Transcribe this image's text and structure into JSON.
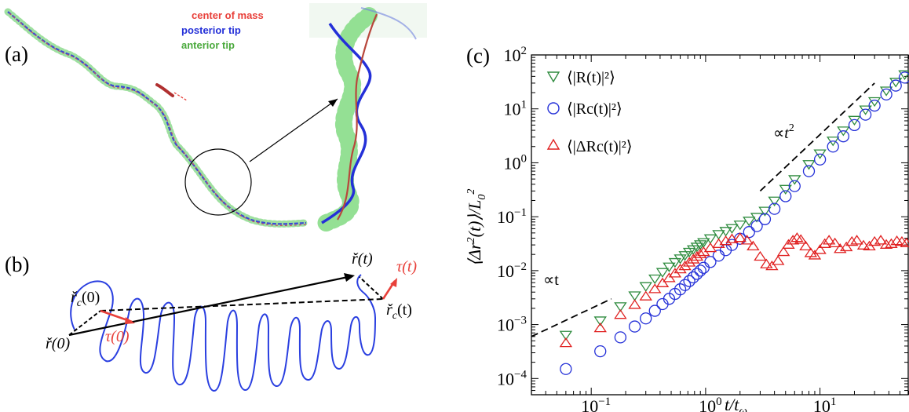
{
  "panels": {
    "a": {
      "label": "(a)",
      "legend": [
        {
          "text": "center of mass",
          "color": "#e8403a"
        },
        {
          "text": "posterior tip",
          "color": "#2430d8"
        },
        {
          "text": "anterior tip",
          "color": "#4aa93c"
        }
      ]
    },
    "b": {
      "label": "(b)",
      "labels": {
        "r_t": "ř(t)",
        "tau_t": "τ(t)",
        "rc_0": "ř",
        "rc_0_sub": "c",
        "rc_0_arg": "(0)",
        "rc_t": "ř",
        "rc_t_sub": "c",
        "rc_t_arg": "(t)",
        "r_0": "ř(0)",
        "tau_0": "τ(0)"
      },
      "colors": {
        "helix": "#2a3fe0",
        "tau": "#e8403a",
        "vector": "#000000"
      }
    },
    "c": {
      "label": "(c)"
    }
  },
  "chart_data": {
    "type": "scatter",
    "xscale": "log",
    "yscale": "log",
    "xlim": [
      0.03,
      60
    ],
    "ylim": [
      5e-05,
      100
    ],
    "xlabel": "t/tω",
    "ylabel": "⟨Δr²(t)⟩/L0²",
    "x_ticks": [
      {
        "base": "10",
        "exp": "−1",
        "value": 0.1
      },
      {
        "base": "10",
        "exp": "0",
        "value": 1
      },
      {
        "base": "10",
        "exp": "1",
        "value": 10
      }
    ],
    "y_ticks": [
      {
        "base": "10",
        "exp": "−4",
        "value": 0.0001
      },
      {
        "base": "10",
        "exp": "−3",
        "value": 0.001
      },
      {
        "base": "10",
        "exp": "−2",
        "value": 0.01
      },
      {
        "base": "10",
        "exp": "−1",
        "value": 0.1
      },
      {
        "base": "10",
        "exp": "0",
        "value": 1
      },
      {
        "base": "10",
        "exp": "1",
        "value": 10
      },
      {
        "base": "10",
        "exp": "2",
        "value": 100
      }
    ],
    "legend_position": "top-left",
    "series": [
      {
        "name": "⟨|R(t)|²⟩",
        "marker": "triangle-down",
        "color": "#2e8b3e",
        "points": [
          [
            0.06,
            0.00065
          ],
          [
            0.12,
            0.0012
          ],
          [
            0.18,
            0.0022
          ],
          [
            0.24,
            0.0035
          ],
          [
            0.3,
            0.0052
          ],
          [
            0.36,
            0.0072
          ],
          [
            0.42,
            0.0095
          ],
          [
            0.48,
            0.012
          ],
          [
            0.54,
            0.0145
          ],
          [
            0.6,
            0.017
          ],
          [
            0.66,
            0.0195
          ],
          [
            0.72,
            0.0225
          ],
          [
            0.78,
            0.025
          ],
          [
            0.84,
            0.028
          ],
          [
            0.9,
            0.031
          ],
          [
            0.96,
            0.034
          ],
          [
            1.1,
            0.04
          ],
          [
            1.3,
            0.048
          ],
          [
            1.5,
            0.055
          ],
          [
            1.7,
            0.062
          ],
          [
            2.0,
            0.072
          ],
          [
            2.4,
            0.085
          ],
          [
            2.8,
            0.1
          ],
          [
            3.3,
            0.13
          ],
          [
            4.0,
            0.2
          ],
          [
            5.0,
            0.33
          ],
          [
            6.0,
            0.5
          ],
          [
            8.0,
            0.95
          ],
          [
            10,
            1.5
          ],
          [
            13,
            2.6
          ],
          [
            16,
            4.0
          ],
          [
            20,
            6.3
          ],
          [
            25,
            9.8
          ],
          [
            30,
            14
          ],
          [
            38,
            22
          ],
          [
            46,
            32
          ],
          [
            55,
            44
          ]
        ]
      },
      {
        "name": "⟨|Rc(t)|²⟩",
        "marker": "circle",
        "color": "#2430d8",
        "points": [
          [
            0.06,
            0.00015
          ],
          [
            0.12,
            0.00032
          ],
          [
            0.18,
            0.00058
          ],
          [
            0.24,
            0.00092
          ],
          [
            0.3,
            0.0013
          ],
          [
            0.36,
            0.0018
          ],
          [
            0.42,
            0.0024
          ],
          [
            0.48,
            0.003
          ],
          [
            0.54,
            0.0037
          ],
          [
            0.6,
            0.0045
          ],
          [
            0.66,
            0.0054
          ],
          [
            0.72,
            0.0064
          ],
          [
            0.78,
            0.0075
          ],
          [
            0.84,
            0.0087
          ],
          [
            0.9,
            0.01
          ],
          [
            0.96,
            0.0113
          ],
          [
            1.1,
            0.0145
          ],
          [
            1.3,
            0.019
          ],
          [
            1.5,
            0.024
          ],
          [
            1.7,
            0.03
          ],
          [
            2.0,
            0.039
          ],
          [
            2.4,
            0.052
          ],
          [
            2.8,
            0.067
          ],
          [
            3.3,
            0.09
          ],
          [
            4.0,
            0.14
          ],
          [
            5.0,
            0.24
          ],
          [
            6.0,
            0.37
          ],
          [
            8.0,
            0.7
          ],
          [
            10,
            1.15
          ],
          [
            13,
            2.0
          ],
          [
            16,
            3.1
          ],
          [
            20,
            5.0
          ],
          [
            25,
            7.8
          ],
          [
            30,
            11.5
          ],
          [
            38,
            18.5
          ],
          [
            46,
            27
          ],
          [
            55,
            38
          ]
        ]
      },
      {
        "name": "⟨|ΔRc(t)|²⟩",
        "marker": "triangle-up",
        "color": "#e02020",
        "points": [
          [
            0.06,
            0.00045
          ],
          [
            0.12,
            0.00085
          ],
          [
            0.18,
            0.0015
          ],
          [
            0.24,
            0.0023
          ],
          [
            0.3,
            0.0033
          ],
          [
            0.36,
            0.0045
          ],
          [
            0.42,
            0.0058
          ],
          [
            0.48,
            0.0072
          ],
          [
            0.54,
            0.0088
          ],
          [
            0.6,
            0.0105
          ],
          [
            0.66,
            0.012
          ],
          [
            0.72,
            0.014
          ],
          [
            0.78,
            0.016
          ],
          [
            0.84,
            0.018
          ],
          [
            0.9,
            0.02
          ],
          [
            0.96,
            0.022
          ],
          [
            1.1,
            0.026
          ],
          [
            1.3,
            0.031
          ],
          [
            1.5,
            0.035
          ],
          [
            1.7,
            0.038
          ],
          [
            2.0,
            0.04
          ],
          [
            2.3,
            0.036
          ],
          [
            2.6,
            0.028
          ],
          [
            3.0,
            0.018
          ],
          [
            3.4,
            0.013
          ],
          [
            3.8,
            0.012
          ],
          [
            4.3,
            0.015
          ],
          [
            4.8,
            0.022
          ],
          [
            5.3,
            0.03
          ],
          [
            5.8,
            0.036
          ],
          [
            6.3,
            0.04
          ],
          [
            6.8,
            0.037
          ],
          [
            7.5,
            0.028
          ],
          [
            8.3,
            0.021
          ],
          [
            9.0,
            0.019
          ],
          [
            10,
            0.024
          ],
          [
            11,
            0.031
          ],
          [
            12,
            0.036
          ],
          [
            13.5,
            0.032
          ],
          [
            15,
            0.025
          ],
          [
            17,
            0.027
          ],
          [
            19,
            0.034
          ],
          [
            21,
            0.036
          ],
          [
            24,
            0.029
          ],
          [
            27,
            0.028
          ],
          [
            30,
            0.034
          ],
          [
            34,
            0.036
          ],
          [
            38,
            0.03
          ],
          [
            42,
            0.031
          ],
          [
            47,
            0.035
          ],
          [
            52,
            0.034
          ],
          [
            57,
            0.032
          ]
        ]
      }
    ],
    "reference_lines": [
      {
        "label": "∝t",
        "slope": 1,
        "x": [
          0.03,
          0.15
        ],
        "y": [
          0.0006,
          0.003
        ]
      },
      {
        "label": "∝t²",
        "slope": 2,
        "x": [
          3.0,
          30
        ],
        "y": [
          0.3,
          30
        ]
      }
    ]
  }
}
